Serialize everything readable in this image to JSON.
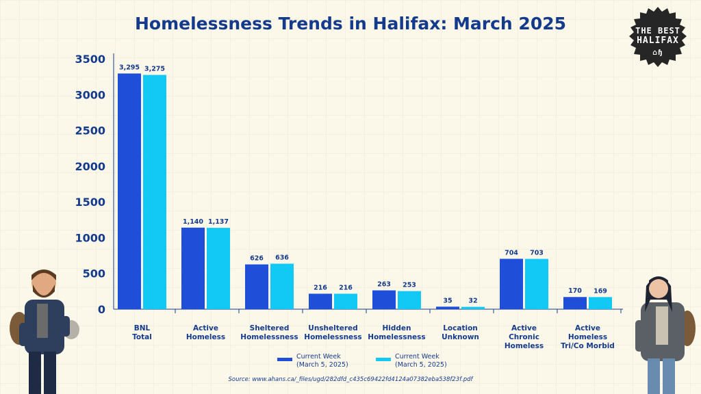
{
  "badge": {
    "line1": "THE BEST",
    "line2": "HALIFAX",
    "line3": "⌂ɧ"
  },
  "source_text": "Source: www.ahans.ca/_files/ugd/282dfd_c435c69422fd4124a07382eba538f23f.pdf",
  "colors": {
    "series1": "#1f4fd8",
    "series2": "#12c8f5",
    "text": "#143a8c"
  },
  "chart_data": {
    "type": "bar",
    "title": "Homelessness Trends in Halifax: March 2025",
    "xlabel": "",
    "ylabel": "",
    "ylim": [
      0,
      3500
    ],
    "yticks": [
      0,
      500,
      1000,
      1500,
      2000,
      2500,
      3000,
      3500
    ],
    "grid": false,
    "legend_position": "bottom",
    "categories": [
      [
        "BNL",
        "Total"
      ],
      [
        "Active",
        "Homeless"
      ],
      [
        "Sheltered",
        "Homelessness"
      ],
      [
        "Unsheltered",
        "Homelessness"
      ],
      [
        "Hidden",
        "Homelessness"
      ],
      [
        "Location",
        "Unknown"
      ],
      [
        "Active",
        "Chronic",
        "Homeless"
      ],
      [
        "Active",
        "Homeless",
        "Tri/Co Morbid"
      ]
    ],
    "series": [
      {
        "name": "Current Week (March 5, 2025)",
        "values": [
          3295,
          1140,
          626,
          216,
          263,
          35,
          704,
          170
        ],
        "labels": [
          "3,295",
          "1,140",
          "626",
          "216",
          "263",
          "35",
          "704",
          "170"
        ]
      },
      {
        "name": "Current Week (March 5, 2025)",
        "values": [
          3275,
          1137,
          636,
          216,
          253,
          32,
          703,
          169
        ],
        "labels": [
          "3,275",
          "1,137",
          "636",
          "216",
          "253",
          "32",
          "703",
          "169"
        ]
      }
    ],
    "legend": [
      {
        "line1": "Current Week",
        "line2": "(March 5, 2025)"
      },
      {
        "line1": "Current Week",
        "line2": "(March 5, 2025)"
      }
    ]
  }
}
